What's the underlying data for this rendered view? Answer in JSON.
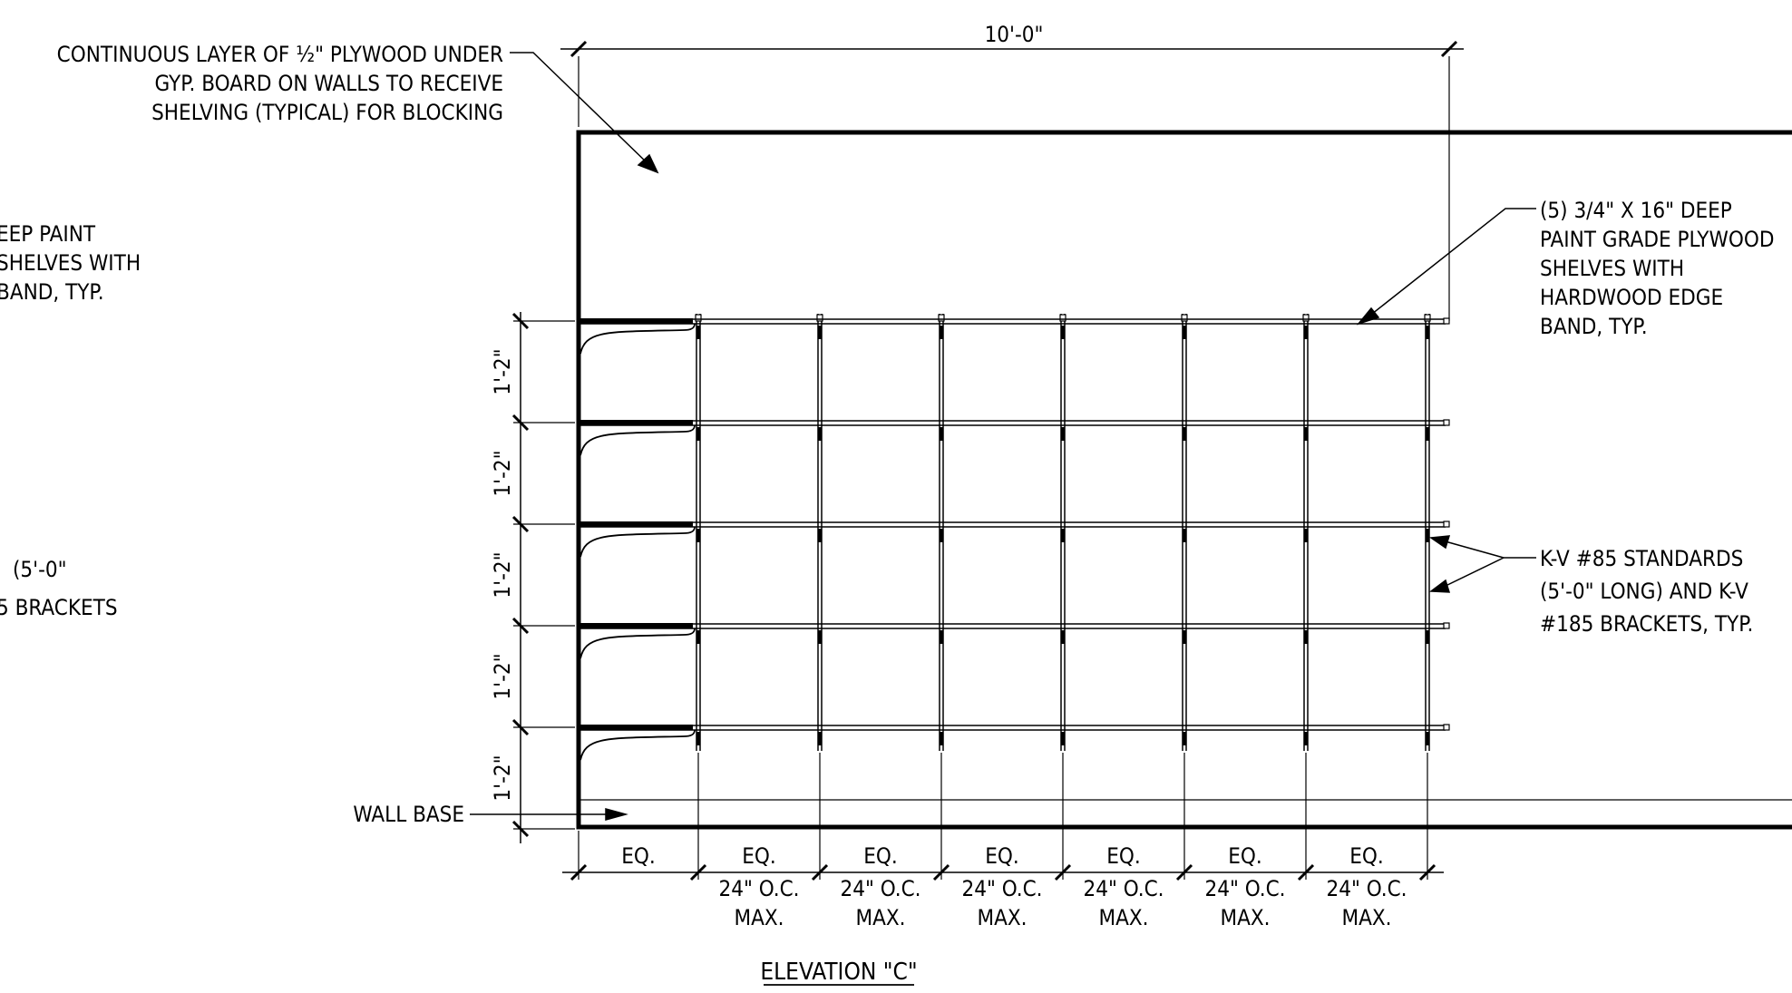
{
  "drawing": {
    "overall_dimension": "10'-0\"",
    "title": "ELEVATION \"C\"",
    "left_clipped_notes": [
      "EEP PAINT",
      "SHELVES WITH",
      "BAND, TYP.",
      "(5'-0\"",
      "5 BRACKETS"
    ],
    "plywood_note": [
      "CONTINUOUS LAYER OF ½\" PLYWOOD UNDER",
      "GYP. BOARD ON WALLS TO RECEIVE",
      "SHELVING (TYPICAL) FOR BLOCKING"
    ],
    "shelf_note": [
      "(5) 3/4\" X 16\" DEEP",
      "PAINT GRADE PLYWOOD",
      "SHELVES WITH",
      "HARDWOOD EDGE",
      "BAND, TYP."
    ],
    "standards_note": [
      "K-V #85 STANDARDS",
      "(5'-0\" LONG) AND K-V",
      "#185 BRACKETS, TYP."
    ],
    "wall_base_label": "WALL BASE",
    "vertical_spacing": [
      "1'-2\"",
      "1'-2\"",
      "1'-2\"",
      "1'-2\"",
      "1'-2\""
    ],
    "horizontal_spacing": [
      {
        "top": "EQ.",
        "line2": "",
        "line3": ""
      },
      {
        "top": "EQ.",
        "line2": "24\" O.C.",
        "line3": "MAX."
      },
      {
        "top": "EQ.",
        "line2": "24\" O.C.",
        "line3": "MAX."
      },
      {
        "top": "EQ.",
        "line2": "24\" O.C.",
        "line3": "MAX."
      },
      {
        "top": "EQ.",
        "line2": "24\" O.C.",
        "line3": "MAX."
      },
      {
        "top": "EQ.",
        "line2": "24\" O.C.",
        "line3": "MAX."
      },
      {
        "top": "EQ.",
        "line2": "24\" O.C.",
        "line3": "MAX."
      }
    ]
  }
}
